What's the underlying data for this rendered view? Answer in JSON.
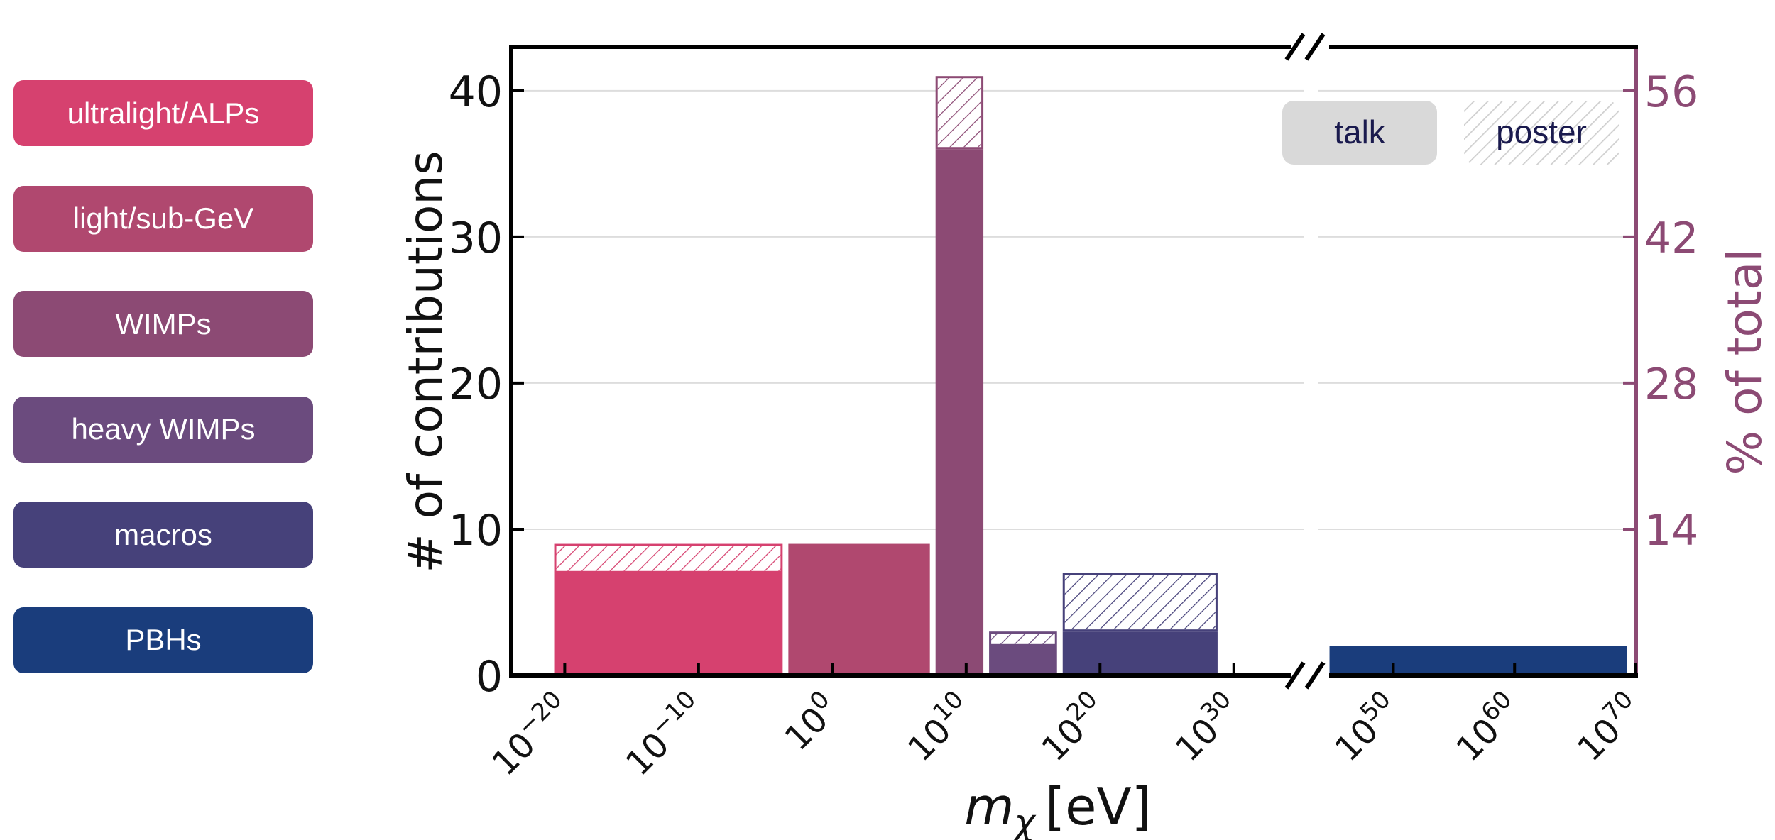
{
  "legend": {
    "categories": [
      {
        "label": "ultralight/ALPs",
        "color": "#d6416f"
      },
      {
        "label": "light/sub-GeV",
        "color": "#b0486f"
      },
      {
        "label": "WIMPs",
        "color": "#8c4a74"
      },
      {
        "label": "heavy WIMPs",
        "color": "#6b4b7e"
      },
      {
        "label": "macros",
        "color": "#46417a"
      },
      {
        "label": "PBHs",
        "color": "#1a3d7c"
      }
    ],
    "types": [
      {
        "label": "talk",
        "style": "solid"
      },
      {
        "label": "poster",
        "style": "hatched"
      }
    ]
  },
  "chart_data": {
    "type": "bar",
    "subtype": "stacked histogram (talk + poster) with broken x-axis",
    "xlabel_main": "m",
    "xlabel_sub": "χ",
    "xlabel_unit": "[eV]",
    "ylabel": "# of contributions",
    "ylabel_right": "% of total",
    "ylim": [
      0,
      43
    ],
    "yticks": [
      0,
      10,
      20,
      30,
      40
    ],
    "yticks_right": [
      14,
      28,
      42,
      56
    ],
    "right_axis_color": "#8c4a74",
    "x_scale": "log10",
    "x_segments": [
      [
        -24,
        35
      ],
      [
        44,
        70
      ]
    ],
    "xticks": [
      {
        "base": "10",
        "exp": "−20",
        "value": -20
      },
      {
        "base": "10",
        "exp": "−10",
        "value": -10
      },
      {
        "base": "10",
        "exp": "0",
        "value": 0
      },
      {
        "base": "10",
        "exp": "10",
        "value": 10
      },
      {
        "base": "10",
        "exp": "20",
        "value": 20
      },
      {
        "base": "10",
        "exp": "30",
        "value": 30
      },
      {
        "base": "10",
        "exp": "50",
        "value": 50
      },
      {
        "base": "10",
        "exp": "60",
        "value": 60
      },
      {
        "base": "10",
        "exp": "70",
        "value": 70
      }
    ],
    "grid": "horizontal",
    "bins": [
      {
        "category": "ultralight/ALPs",
        "x_range": [
          -21,
          -3.5
        ],
        "talk": 7,
        "poster": 2
      },
      {
        "category": "light/sub-GeV",
        "x_range": [
          -3.5,
          7.5
        ],
        "talk": 9,
        "poster": 0
      },
      {
        "category": "WIMPs",
        "x_range": [
          7.5,
          11.5
        ],
        "talk": 36,
        "poster": 5
      },
      {
        "category": "heavy WIMPs",
        "x_range": [
          11.5,
          17
        ],
        "talk": 2,
        "poster": 1
      },
      {
        "category": "macros",
        "x_range": [
          17,
          29
        ],
        "talk": 3,
        "poster": 4
      },
      {
        "category": "PBHs",
        "x_range": [
          44.5,
          69.5
        ],
        "talk": 2,
        "poster": 0
      }
    ]
  }
}
